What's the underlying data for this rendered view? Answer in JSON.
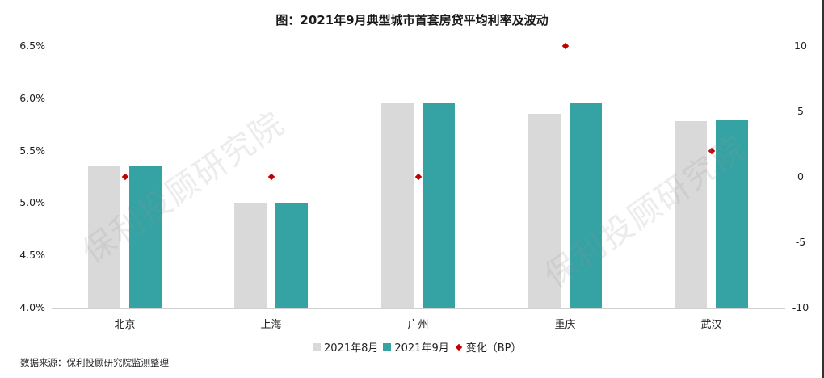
{
  "chart_data": {
    "type": "bar",
    "title": "图：2021年9月典型城市首套房贷平均利率及波动",
    "categories": [
      "北京",
      "上海",
      "广州",
      "重庆",
      "武汉"
    ],
    "series": [
      {
        "name": "2021年8月",
        "type": "bar",
        "axis": "left",
        "color": "#d9d9d9",
        "values": [
          5.35,
          5.0,
          5.95,
          5.85,
          5.78
        ]
      },
      {
        "name": "2021年9月",
        "type": "bar",
        "axis": "left",
        "color": "#35a3a3",
        "values": [
          5.35,
          5.0,
          5.95,
          5.95,
          5.8
        ]
      },
      {
        "name": "变化（BP）",
        "type": "scatter",
        "axis": "right",
        "color": "#c00000",
        "marker": "diamond",
        "values": [
          0,
          0,
          0,
          10,
          2
        ]
      }
    ],
    "xlabel": "",
    "ylabel": "",
    "ylim": [
      4.0,
      6.5
    ],
    "y2lim": [
      -10,
      10
    ],
    "yticks": [
      "4.0%",
      "4.5%",
      "5.0%",
      "5.5%",
      "6.0%",
      "6.5%"
    ],
    "y2ticks": [
      "-10",
      "-5",
      "0",
      "5",
      "10"
    ],
    "grid": false,
    "legend_position": "bottom",
    "source": "数据来源：保利投顾研究院监测整理",
    "watermark": "保利投顾研究院"
  },
  "legend": {
    "aug": "2021年8月",
    "sep": "2021年9月",
    "change": "变化（BP）"
  }
}
